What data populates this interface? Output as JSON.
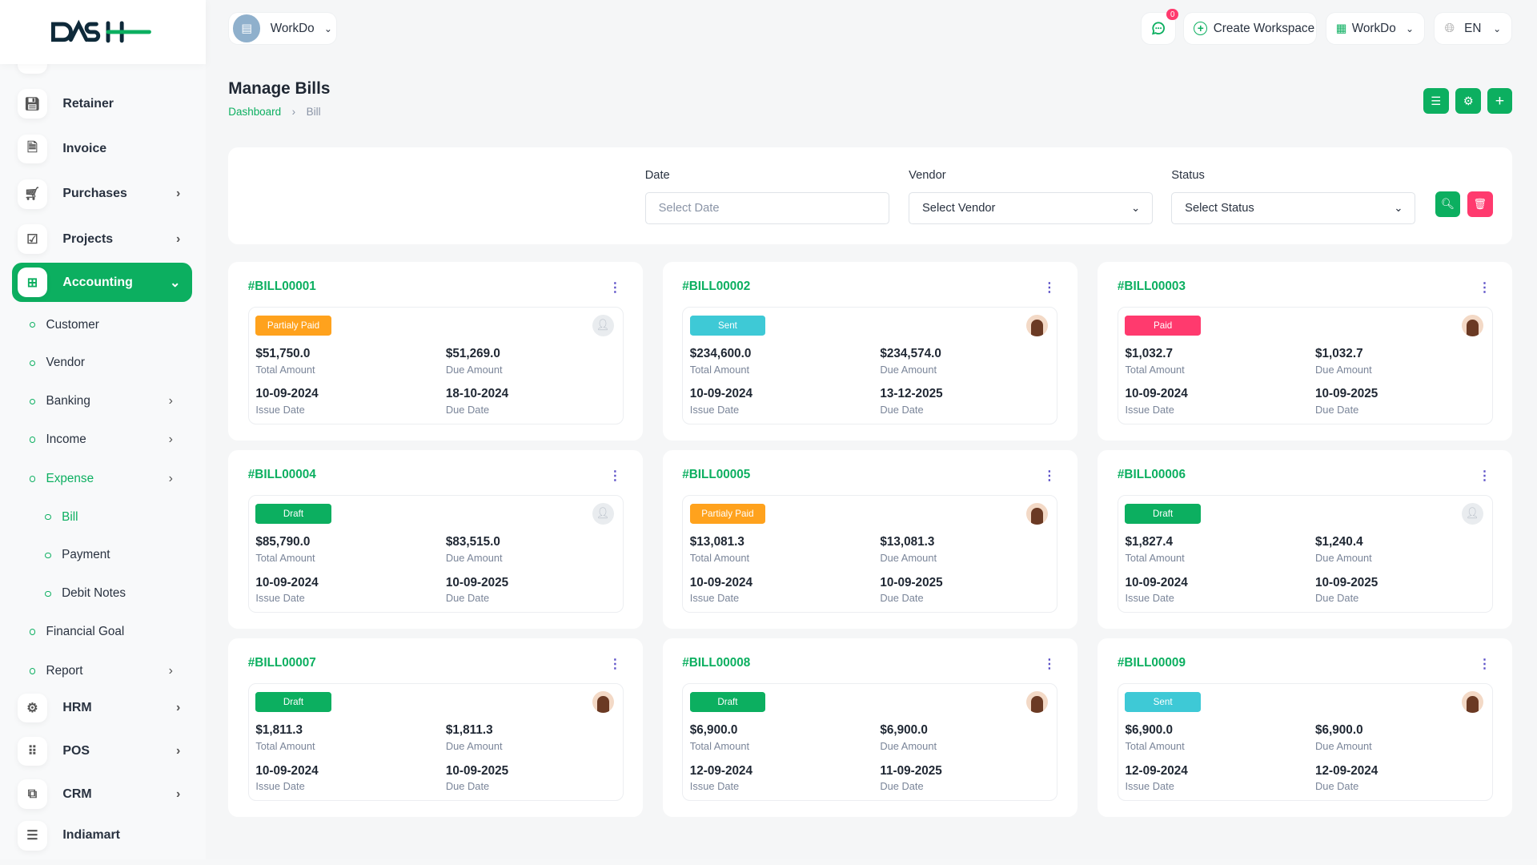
{
  "brand": {
    "logo_text": "DASH",
    "accent": "#0caf60"
  },
  "header": {
    "workspace": "WorkDo",
    "notifications_count": "0",
    "create_workspace": "Create Workspace",
    "company": "WorkDo",
    "language": "EN"
  },
  "sidebar": {
    "items": [
      {
        "label": "Retainer",
        "icon": "save-icon"
      },
      {
        "label": "Invoice",
        "icon": "file-icon"
      },
      {
        "label": "Purchases",
        "icon": "cart-icon",
        "chevron": true
      },
      {
        "label": "Projects",
        "icon": "checkbox-icon",
        "chevron": true
      },
      {
        "label": "Accounting",
        "icon": "grid-plus-icon",
        "chevron": true,
        "active": true
      }
    ],
    "accounting_sub": [
      {
        "label": "Customer"
      },
      {
        "label": "Vendor"
      },
      {
        "label": "Banking",
        "chevron": true
      },
      {
        "label": "Income",
        "chevron": true
      },
      {
        "label": "Expense",
        "chevron": true,
        "active": true
      }
    ],
    "expense_sub": [
      {
        "label": "Bill",
        "active": true
      },
      {
        "label": "Payment"
      },
      {
        "label": "Debit Notes"
      }
    ],
    "accounting_sub2": [
      {
        "label": "Financial Goal"
      },
      {
        "label": "Report",
        "chevron": true
      }
    ],
    "items2": [
      {
        "label": "HRM",
        "icon": "hrm-icon"
      },
      {
        "label": "POS",
        "icon": "grid-dots-icon"
      },
      {
        "label": "CRM",
        "icon": "crm-icon"
      },
      {
        "label": "Indiamart",
        "icon": "list-icon"
      }
    ]
  },
  "page": {
    "title": "Manage Bills",
    "breadcrumb": [
      "Dashboard",
      "Bill"
    ]
  },
  "filters": {
    "date": {
      "label": "Date",
      "placeholder": "Select Date"
    },
    "vendor": {
      "label": "Vendor",
      "value": "Select Vendor"
    },
    "status": {
      "label": "Status",
      "value": "Select Status"
    }
  },
  "labels": {
    "total": "Total Amount",
    "due": "Due Amount",
    "issue": "Issue Date",
    "due_date": "Due Date"
  },
  "status_colors": {
    "Partialy Paid": "#ffa21d",
    "Sent": "#3ec9d6",
    "Paid": "#ff3a6e",
    "Draft": "#0caf60"
  },
  "bills": [
    {
      "id": "#BILL00001",
      "status": "Partialy Paid",
      "total": "$51,750.0",
      "due": "$51,269.0",
      "issue_date": "10-09-2024",
      "due_date": "18-10-2024",
      "avatar": "default"
    },
    {
      "id": "#BILL00002",
      "status": "Sent",
      "total": "$234,600.0",
      "due": "$234,574.0",
      "issue_date": "10-09-2024",
      "due_date": "13-12-2025",
      "avatar": "photo"
    },
    {
      "id": "#BILL00003",
      "status": "Paid",
      "total": "$1,032.7",
      "due": "$1,032.7",
      "issue_date": "10-09-2024",
      "due_date": "10-09-2025",
      "avatar": "photo"
    },
    {
      "id": "#BILL00004",
      "status": "Draft",
      "total": "$85,790.0",
      "due": "$83,515.0",
      "issue_date": "10-09-2024",
      "due_date": "10-09-2025",
      "avatar": "default"
    },
    {
      "id": "#BILL00005",
      "status": "Partialy Paid",
      "total": "$13,081.3",
      "due": "$13,081.3",
      "issue_date": "10-09-2024",
      "due_date": "10-09-2025",
      "avatar": "photo"
    },
    {
      "id": "#BILL00006",
      "status": "Draft",
      "total": "$1,827.4",
      "due": "$1,240.4",
      "issue_date": "10-09-2024",
      "due_date": "10-09-2025",
      "avatar": "default"
    },
    {
      "id": "#BILL00007",
      "status": "Draft",
      "total": "$1,811.3",
      "due": "$1,811.3",
      "issue_date": "10-09-2024",
      "due_date": "10-09-2025",
      "avatar": "photo"
    },
    {
      "id": "#BILL00008",
      "status": "Draft",
      "total": "$6,900.0",
      "due": "$6,900.0",
      "issue_date": "12-09-2024",
      "due_date": "11-09-2025",
      "avatar": "photo"
    },
    {
      "id": "#BILL00009",
      "status": "Sent",
      "total": "$6,900.0",
      "due": "$6,900.0",
      "issue_date": "12-09-2024",
      "due_date": "12-09-2024",
      "avatar": "photo"
    }
  ]
}
